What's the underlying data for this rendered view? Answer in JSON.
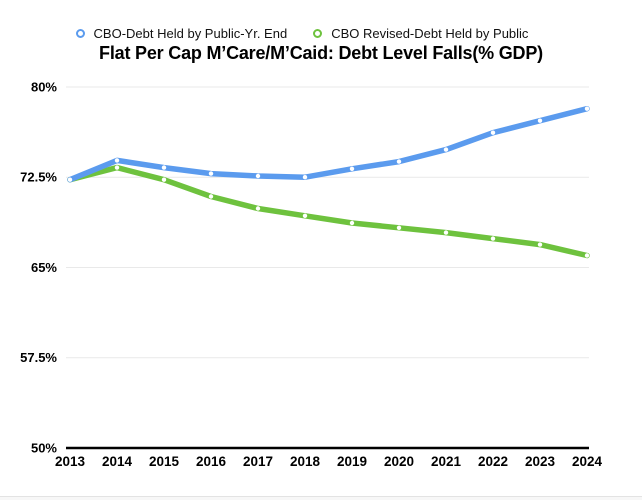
{
  "title": "Flat Per Cap M’Care/M’Caid: Debt Level Falls(% GDP)",
  "legend": {
    "items": [
      {
        "label": "CBO-Debt Held by Public-Yr. End",
        "color": "#5b9bee",
        "marker": "open-circle-icon"
      },
      {
        "label": "CBO Revised-Debt Held by Public",
        "color": "#6ec23e",
        "marker": "open-circle-icon"
      }
    ]
  },
  "chart_data": {
    "type": "line",
    "title": "Flat Per Cap M’Care/M’Caid: Debt Level Falls(% GDP)",
    "categories": [
      "2013",
      "2014",
      "2015",
      "2016",
      "2017",
      "2018",
      "2019",
      "2020",
      "2021",
      "2022",
      "2023",
      "2024"
    ],
    "series": [
      {
        "name": "CBO-Debt Held by Public-Yr. End",
        "color": "#5b9bee",
        "values": [
          72.3,
          73.9,
          73.3,
          72.8,
          72.6,
          72.5,
          73.2,
          73.8,
          74.8,
          76.2,
          77.2,
          78.2
        ]
      },
      {
        "name": "CBO Revised-Debt Held by Public",
        "color": "#6ec23e",
        "values": [
          72.3,
          73.3,
          72.3,
          70.9,
          69.9,
          69.3,
          68.7,
          68.3,
          67.9,
          67.4,
          66.9,
          66.0
        ]
      }
    ],
    "xlabel": "",
    "ylabel": "",
    "ylim": [
      50,
      80
    ],
    "y_ticks": [
      80,
      72.5,
      65,
      57.5,
      50
    ],
    "y_tick_labels": [
      "80%",
      "72.5%",
      "65%",
      "57.5%",
      "50%"
    ],
    "unit": "% of GDP",
    "grid": "horizontal",
    "legend_position": "top",
    "marker": "open-circle",
    "colors": {
      "grid": "#e9e9e9",
      "axis": "#000000",
      "marker_fill": "#ffffff"
    }
  }
}
